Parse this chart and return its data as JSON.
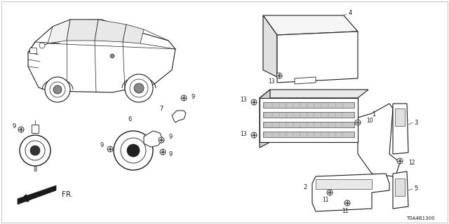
{
  "background_color": "#ffffff",
  "diagram_code": "T0A4B1300",
  "fig_width": 6.4,
  "fig_height": 3.2,
  "dpi": 100,
  "black": "#1a1a1a",
  "gray": "#888888",
  "lightgray": "#cccccc"
}
